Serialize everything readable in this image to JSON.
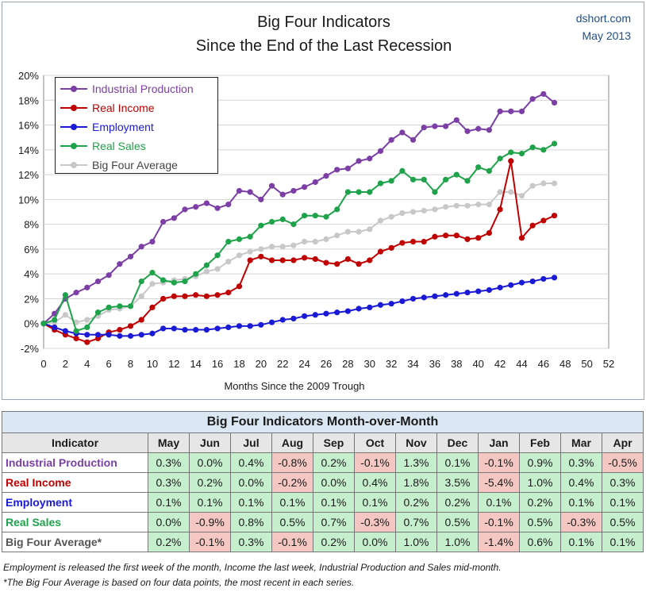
{
  "header": {
    "title_line1": "Big Four Indicators",
    "title_line2": "Since the End of the Last Recession",
    "credit_site": "dshort.com",
    "credit_date": "May 2013"
  },
  "chart_data": {
    "type": "line",
    "xlabel": "Months Since the 2009 Trough",
    "ylabel": "",
    "xlim": [
      0,
      52
    ],
    "ylim": [
      -2,
      20
    ],
    "x_ticks": [
      0,
      2,
      4,
      6,
      8,
      10,
      12,
      14,
      16,
      18,
      20,
      22,
      24,
      26,
      28,
      30,
      32,
      34,
      36,
      38,
      40,
      42,
      44,
      46,
      48,
      50,
      52
    ],
    "y_ticks": [
      "-2%",
      "0%",
      "2%",
      "4%",
      "6%",
      "8%",
      "10%",
      "12%",
      "14%",
      "16%",
      "18%",
      "20%"
    ],
    "y_tick_values": [
      -2,
      0,
      2,
      4,
      6,
      8,
      10,
      12,
      14,
      16,
      18,
      20
    ],
    "grid": true,
    "legend_position": "top-left",
    "series": [
      {
        "name": "Industrial Production",
        "color": "#7b3fa6",
        "values": [
          0,
          0.8,
          2.0,
          2.5,
          2.9,
          3.4,
          3.9,
          4.8,
          5.4,
          6.2,
          6.6,
          8.2,
          8.5,
          9.2,
          9.4,
          9.7,
          9.3,
          9.6,
          10.7,
          10.6,
          10.0,
          11.1,
          10.4,
          10.7,
          11.0,
          11.4,
          11.9,
          12.4,
          12.5,
          13.1,
          13.3,
          13.9,
          14.8,
          15.4,
          14.8,
          15.8,
          15.9,
          15.9,
          16.4,
          15.5,
          15.7,
          15.6,
          17.1,
          17.1,
          17.1,
          18.1,
          18.5,
          17.8
        ]
      },
      {
        "name": "Real Income",
        "color": "#c00000",
        "values": [
          0,
          -0.5,
          -0.9,
          -1.2,
          -1.5,
          -1.2,
          -0.7,
          -0.5,
          -0.2,
          0.3,
          1.3,
          2.0,
          2.2,
          2.2,
          2.3,
          2.2,
          2.3,
          2.5,
          3.0,
          5.1,
          5.4,
          5.1,
          5.1,
          5.1,
          5.3,
          5.2,
          4.9,
          4.8,
          5.2,
          4.8,
          5.1,
          5.8,
          6.1,
          6.5,
          6.6,
          6.6,
          7.0,
          7.1,
          7.1,
          6.8,
          6.9,
          7.3,
          9.2,
          13.1,
          6.9,
          7.9,
          8.3,
          8.7
        ]
      },
      {
        "name": "Employment",
        "color": "#1a1ad6",
        "values": [
          0,
          -0.3,
          -0.6,
          -0.8,
          -0.9,
          -0.9,
          -0.9,
          -1.0,
          -1.0,
          -0.9,
          -0.8,
          -0.4,
          -0.4,
          -0.5,
          -0.5,
          -0.5,
          -0.4,
          -0.3,
          -0.2,
          -0.2,
          -0.1,
          0.1,
          0.3,
          0.4,
          0.6,
          0.7,
          0.8,
          0.9,
          1.0,
          1.2,
          1.3,
          1.5,
          1.6,
          1.8,
          2.0,
          2.1,
          2.2,
          2.3,
          2.4,
          2.5,
          2.6,
          2.7,
          2.9,
          3.1,
          3.3,
          3.4,
          3.6,
          3.7
        ]
      },
      {
        "name": "Real Sales",
        "color": "#1fa34a",
        "values": [
          0,
          0.3,
          2.3,
          -0.6,
          -0.3,
          0.9,
          1.3,
          1.4,
          1.4,
          3.4,
          4.1,
          3.5,
          3.3,
          3.4,
          4.0,
          4.7,
          5.5,
          6.6,
          6.8,
          7.0,
          7.9,
          8.2,
          8.4,
          8.0,
          8.7,
          8.7,
          8.6,
          9.2,
          10.6,
          10.6,
          10.6,
          11.3,
          11.5,
          12.3,
          11.6,
          11.6,
          10.6,
          11.6,
          12.0,
          11.5,
          12.6,
          12.3,
          13.3,
          13.8,
          13.7,
          14.2,
          14.0,
          14.5
        ]
      },
      {
        "name": "Big Four Average",
        "color": "#c8c8c8",
        "values": [
          0,
          0.1,
          0.7,
          0.1,
          0.3,
          0.6,
          1.1,
          1.2,
          1.4,
          2.2,
          3.2,
          3.3,
          3.5,
          3.6,
          3.8,
          4.2,
          4.4,
          5.0,
          5.5,
          5.8,
          6.0,
          6.2,
          6.2,
          6.3,
          6.6,
          6.6,
          6.8,
          7.1,
          7.4,
          7.4,
          7.6,
          8.3,
          8.6,
          8.9,
          9.0,
          9.1,
          9.2,
          9.4,
          9.5,
          9.5,
          9.6,
          9.6,
          10.6,
          10.6,
          10.3,
          11.1,
          11.3,
          11.3
        ]
      }
    ]
  },
  "table": {
    "title": "Big Four Indicators Month-over-Month",
    "indicator_header": "Indicator",
    "months": [
      "May",
      "Jun",
      "Jul",
      "Aug",
      "Sep",
      "Oct",
      "Nov",
      "Dec",
      "Jan",
      "Feb",
      "Mar",
      "Apr"
    ],
    "rows": [
      {
        "name": "Industrial Production",
        "color": "#7b3fa6",
        "values": [
          "0.3%",
          "0.0%",
          "0.4%",
          "-0.8%",
          "0.2%",
          "-0.1%",
          "1.3%",
          "0.1%",
          "-0.1%",
          "0.9%",
          "0.3%",
          "-0.5%"
        ]
      },
      {
        "name": "Real Income",
        "color": "#c00000",
        "values": [
          "0.3%",
          "0.2%",
          "0.0%",
          "-0.2%",
          "0.0%",
          "0.4%",
          "1.8%",
          "3.5%",
          "-5.4%",
          "1.0%",
          "0.4%",
          "0.3%"
        ]
      },
      {
        "name": "Employment",
        "color": "#1a1ad6",
        "values": [
          "0.1%",
          "0.1%",
          "0.1%",
          "0.1%",
          "0.1%",
          "0.1%",
          "0.2%",
          "0.2%",
          "0.1%",
          "0.2%",
          "0.1%",
          "0.1%"
        ]
      },
      {
        "name": "Real Sales",
        "color": "#1fa34a",
        "values": [
          "0.0%",
          "-0.9%",
          "0.8%",
          "0.5%",
          "0.7%",
          "-0.3%",
          "0.7%",
          "0.5%",
          "-0.1%",
          "0.5%",
          "-0.3%",
          "0.5%"
        ]
      },
      {
        "name": "Big Four Average*",
        "color": "#555555",
        "values": [
          "0.2%",
          "-0.1%",
          "0.3%",
          "-0.1%",
          "0.2%",
          "0.0%",
          "1.0%",
          "1.0%",
          "-1.4%",
          "0.6%",
          "0.1%",
          "0.1%"
        ]
      }
    ]
  },
  "notes": {
    "line1": "Employment is released the first week of the month, Income the last week, Industrial Production and Sales mid-month.",
    "line2": "*The Big Four Average is based on four data points, the most recent in each series."
  }
}
